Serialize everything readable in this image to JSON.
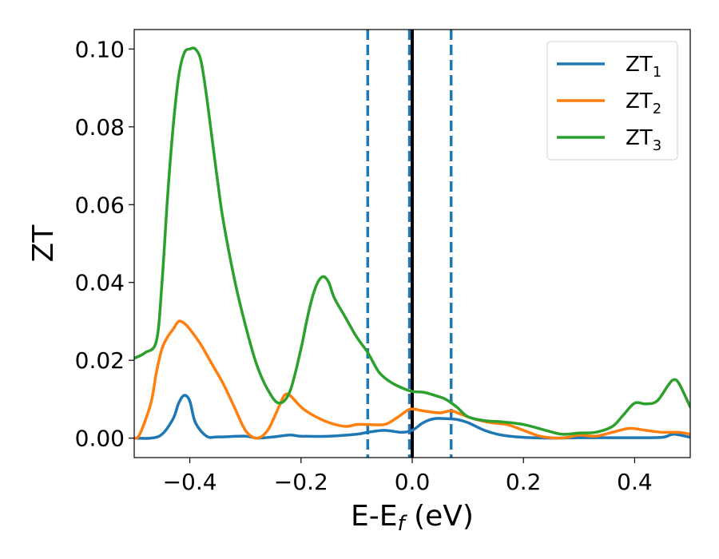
{
  "chart_data": {
    "type": "line",
    "xlabel": "E-E",
    "xlabel_sub": "f",
    "xlabel_suffix": " (eV)",
    "ylabel": "ZT",
    "xlim": [
      -0.5,
      0.5
    ],
    "ylim": [
      -0.005,
      0.105
    ],
    "x_ticks": [
      -0.4,
      -0.2,
      0.0,
      0.2,
      0.4
    ],
    "x_tick_labels": [
      "−0.4",
      "−0.2",
      "0.0",
      "0.2",
      "0.4"
    ],
    "y_ticks": [
      0.0,
      0.02,
      0.04,
      0.06,
      0.08,
      0.1
    ],
    "y_tick_labels": [
      "0.00",
      "0.02",
      "0.04",
      "0.06",
      "0.08",
      "0.10"
    ],
    "grid": false,
    "legend_position": "top-right",
    "vlines": [
      {
        "x": -0.08,
        "style": "dashed",
        "color": "#1f77b4"
      },
      {
        "x": -0.005,
        "style": "dashed",
        "color": "#1f77b4"
      },
      {
        "x": 0.07,
        "style": "dashed",
        "color": "#1f77b4"
      },
      {
        "x": 0.0,
        "style": "solid",
        "color": "#000000"
      }
    ],
    "series": [
      {
        "name": "ZT",
        "name_sub": "1",
        "color": "#1f77b4",
        "x": [
          -0.5,
          -0.47,
          -0.45,
          -0.43,
          -0.42,
          -0.41,
          -0.4,
          -0.39,
          -0.37,
          -0.35,
          -0.3,
          -0.28,
          -0.25,
          -0.22,
          -0.2,
          -0.15,
          -0.1,
          -0.08,
          -0.05,
          -0.02,
          0.0,
          0.02,
          0.04,
          0.06,
          0.08,
          0.1,
          0.13,
          0.16,
          0.2,
          0.25,
          0.3,
          0.35,
          0.4,
          0.45,
          0.47,
          0.5
        ],
        "y": [
          0.0,
          0.0,
          0.001,
          0.005,
          0.009,
          0.011,
          0.0095,
          0.004,
          0.0005,
          0.0003,
          0.0005,
          0.0,
          0.0003,
          0.0008,
          0.0005,
          0.0005,
          0.001,
          0.0015,
          0.002,
          0.0015,
          0.002,
          0.004,
          0.005,
          0.005,
          0.0048,
          0.004,
          0.002,
          0.0008,
          0.0002,
          0.0,
          0.0001,
          0.0001,
          0.0001,
          0.0002,
          0.001,
          0.0002
        ]
      },
      {
        "name": "ZT",
        "name_sub": "2",
        "color": "#ff7f0e",
        "x": [
          -0.5,
          -0.49,
          -0.47,
          -0.46,
          -0.45,
          -0.44,
          -0.43,
          -0.42,
          -0.41,
          -0.4,
          -0.38,
          -0.36,
          -0.34,
          -0.32,
          -0.3,
          -0.28,
          -0.26,
          -0.24,
          -0.23,
          -0.22,
          -0.2,
          -0.18,
          -0.15,
          -0.12,
          -0.1,
          -0.08,
          -0.05,
          -0.03,
          -0.01,
          0.0,
          0.02,
          0.05,
          0.07,
          0.09,
          0.11,
          0.14,
          0.17,
          0.2,
          0.23,
          0.26,
          0.28,
          0.3,
          0.33,
          0.36,
          0.39,
          0.42,
          0.45,
          0.48,
          0.5
        ],
        "y": [
          0.0,
          0.001,
          0.009,
          0.017,
          0.023,
          0.026,
          0.028,
          0.03,
          0.0295,
          0.028,
          0.024,
          0.019,
          0.014,
          0.008,
          0.002,
          0.0,
          0.002,
          0.008,
          0.011,
          0.011,
          0.008,
          0.006,
          0.004,
          0.003,
          0.0035,
          0.0035,
          0.0035,
          0.005,
          0.007,
          0.0075,
          0.007,
          0.0065,
          0.007,
          0.006,
          0.005,
          0.004,
          0.0035,
          0.002,
          0.0005,
          0.0,
          0.0002,
          0.0008,
          0.0005,
          0.0015,
          0.0025,
          0.002,
          0.0015,
          0.0015,
          0.001
        ]
      },
      {
        "name": "ZT",
        "name_sub": "3",
        "color": "#2ca02c",
        "x": [
          -0.5,
          -0.48,
          -0.46,
          -0.45,
          -0.44,
          -0.43,
          -0.42,
          -0.41,
          -0.4,
          -0.39,
          -0.38,
          -0.37,
          -0.36,
          -0.35,
          -0.34,
          -0.32,
          -0.3,
          -0.28,
          -0.26,
          -0.24,
          -0.22,
          -0.2,
          -0.19,
          -0.18,
          -0.17,
          -0.16,
          -0.15,
          -0.14,
          -0.12,
          -0.1,
          -0.08,
          -0.06,
          -0.04,
          -0.02,
          0.0,
          0.02,
          0.04,
          0.06,
          0.08,
          0.1,
          0.13,
          0.16,
          0.2,
          0.24,
          0.27,
          0.3,
          0.33,
          0.36,
          0.38,
          0.4,
          0.42,
          0.44,
          0.46,
          0.47,
          0.48,
          0.5
        ],
        "y": [
          0.0205,
          0.022,
          0.025,
          0.04,
          0.062,
          0.08,
          0.093,
          0.099,
          0.1,
          0.1,
          0.097,
          0.088,
          0.077,
          0.066,
          0.056,
          0.041,
          0.029,
          0.019,
          0.0125,
          0.009,
          0.012,
          0.023,
          0.03,
          0.036,
          0.04,
          0.0415,
          0.04,
          0.036,
          0.031,
          0.026,
          0.022,
          0.017,
          0.0145,
          0.013,
          0.012,
          0.0118,
          0.011,
          0.01,
          0.008,
          0.0055,
          0.0045,
          0.0042,
          0.0035,
          0.002,
          0.001,
          0.0013,
          0.0015,
          0.003,
          0.006,
          0.009,
          0.0088,
          0.0095,
          0.0135,
          0.015,
          0.014,
          0.008
        ]
      }
    ]
  }
}
